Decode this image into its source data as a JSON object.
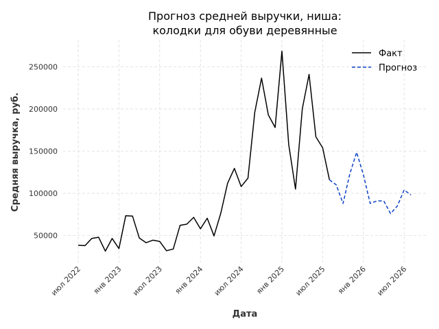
{
  "chart_data": {
    "type": "line",
    "title": [
      "Прогноз средней выручки, ниша:",
      "колодки для обуви деревянные"
    ],
    "xlabel": "Дата",
    "ylabel": "Средняя выручка, руб.",
    "x_ticks": [
      "июл 2022",
      "янв 2023",
      "июл 2023",
      "янв 2024",
      "июл 2024",
      "янв 2025",
      "июл 2025",
      "янв 2026",
      "июл 2026"
    ],
    "y_ticks": [
      50000,
      100000,
      150000,
      200000,
      250000
    ],
    "ylim": [
      18000,
      282000
    ],
    "grid": true,
    "legend_position": "top-right",
    "series": [
      {
        "name": "Факт",
        "color": "#000000",
        "style": "solid",
        "start": "2022-07",
        "values": [
          38500,
          38000,
          46500,
          48000,
          31500,
          46500,
          34500,
          73500,
          73000,
          47000,
          41500,
          44500,
          43000,
          32000,
          34000,
          62000,
          63500,
          71500,
          58000,
          70500,
          49500,
          76500,
          112000,
          129500,
          108000,
          118000,
          196000,
          236500,
          193000,
          178000,
          268500,
          158000,
          105000,
          200000,
          241000,
          167000,
          154000,
          116000
        ]
      },
      {
        "name": "Прогноз",
        "color": "#0b3fc4",
        "style": "dashed",
        "start": "2025-08",
        "values": [
          116000,
          110000,
          88000,
          123000,
          148500,
          122000,
          88000,
          91000,
          91000,
          76000,
          85000,
          104000,
          98000
        ]
      }
    ]
  }
}
